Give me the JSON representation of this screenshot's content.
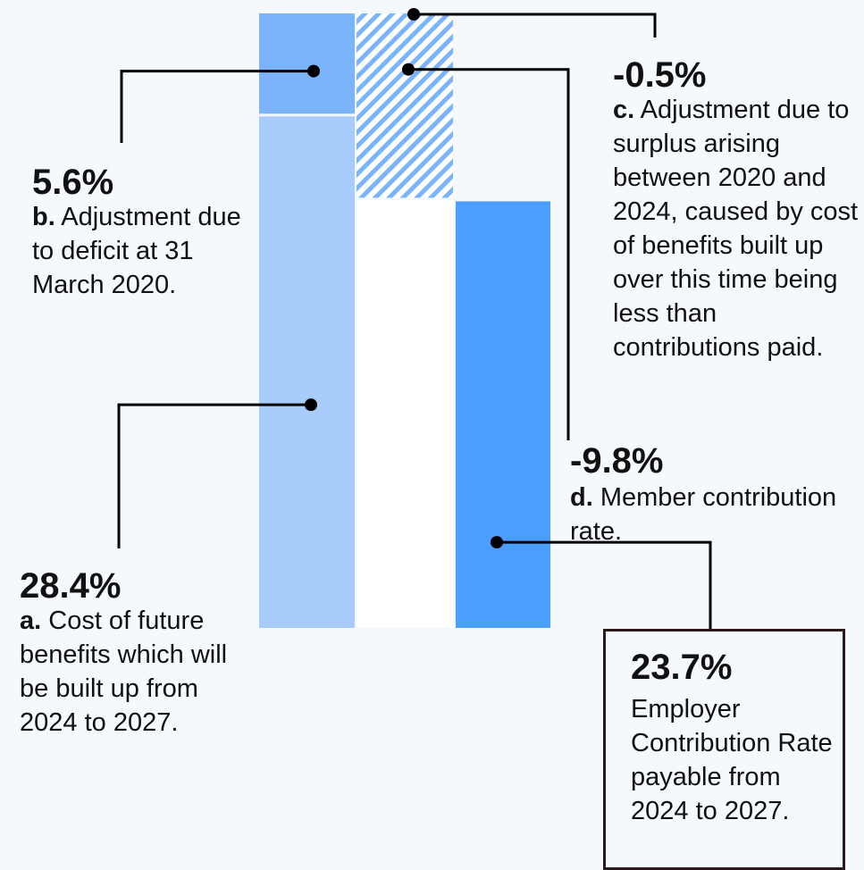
{
  "chart_data": {
    "type": "waterfall",
    "ylim": [
      0,
      34.0
    ],
    "steps": [
      {
        "letter": "a.",
        "value_label": "28.4%",
        "value": 28.4,
        "text": "Cost of future benefits which will be built up from 2024 to 2027."
      },
      {
        "letter": "b.",
        "value_label": "5.6%",
        "value": 5.6,
        "text": "Adjustment due to deficit at 31 March 2020."
      },
      {
        "letter": "c.",
        "value_label": "-0.5%",
        "value": -0.5,
        "text": "Adjustment due to surplus arising between 2020 and 2024, caused by cost of benefits built up over this time being less than contributions paid."
      },
      {
        "letter": "d.",
        "value_label": "-9.8%",
        "value": -9.8,
        "text": "Member contribution rate."
      }
    ],
    "total": {
      "value_label": "23.7%",
      "value": 23.7,
      "text": "Employer Contribution Rate payable from 2024 to 2027."
    },
    "colors": {
      "cost_bar": "#a8cdfd",
      "deficit_bar": "#7bb4fb",
      "surplus_hatch": "#7bb4fb",
      "total_bar": "#4a9efd",
      "connector": "#000000",
      "box_border": "#2a1a1c"
    }
  }
}
